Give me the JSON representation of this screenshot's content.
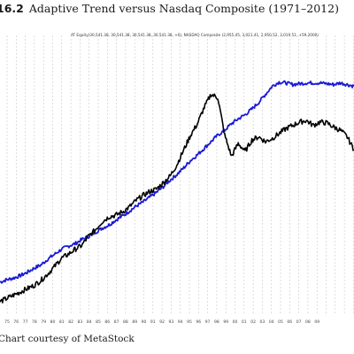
{
  "figure": {
    "number": "16.2",
    "title": "Adaptive Trend versus Nasdaq Composite (1971–2012)",
    "caption": "Chart courtesy of MetaStock"
  },
  "chart_header": "AT Equity(30,541.38, 30,541.38, 30,541.38, 30,541.38, +0), NASDAQ Composite (2,955.45, 3,021.41, 2,950.52, 3,019.51, +59.2000)",
  "chart_data": {
    "type": "line",
    "x_tick_labels": [
      "75",
      "76",
      "77",
      "78",
      "79",
      "80",
      "81",
      "82",
      "83",
      "84",
      "85",
      "86",
      "87",
      "88",
      "89",
      "90",
      "91",
      "92",
      "93",
      "94",
      "95",
      "96",
      "97",
      "98",
      "99",
      "00",
      "01",
      "02",
      "03",
      "04",
      "05",
      "06",
      "07",
      "08",
      "09"
    ],
    "grid": "vertical dashed",
    "legend": "none",
    "series": [
      {
        "name": "AT Equity",
        "color": "#1a1ad6",
        "values": [
          26,
          29,
          31,
          34,
          38,
          43,
          47,
          54,
          60,
          66,
          70,
          73,
          78,
          82,
          87,
          92,
          96,
          102,
          107,
          113,
          119,
          124,
          130,
          136,
          143,
          151,
          158,
          166,
          175,
          182,
          190,
          198,
          206,
          212,
          220,
          226,
          231,
          238,
          246,
          256,
          266,
          271,
          270,
          268,
          269,
          270,
          270,
          270,
          269,
          268,
          270,
          268,
          266
        ]
      },
      {
        "name": "NASDAQ Composite",
        "color": "#000000",
        "values": [
          2,
          6,
          10,
          14,
          18,
          22,
          28,
          36,
          45,
          55,
          60,
          66,
          71,
          82,
          90,
          100,
          106,
          108,
          112,
          118,
          126,
          132,
          137,
          140,
          148,
          156,
          170,
          188,
          206,
          220,
          240,
          256,
          252,
          206,
          180,
          196,
          186,
          200,
          204,
          198,
          202,
          208,
          214,
          218,
          222,
          224,
          218,
          222,
          221,
          216,
          212,
          204,
          188
        ]
      }
    ]
  },
  "colors": {
    "blue_line": "#1a1ad6",
    "black_line": "#000000",
    "grid": "#bdbdbd"
  }
}
